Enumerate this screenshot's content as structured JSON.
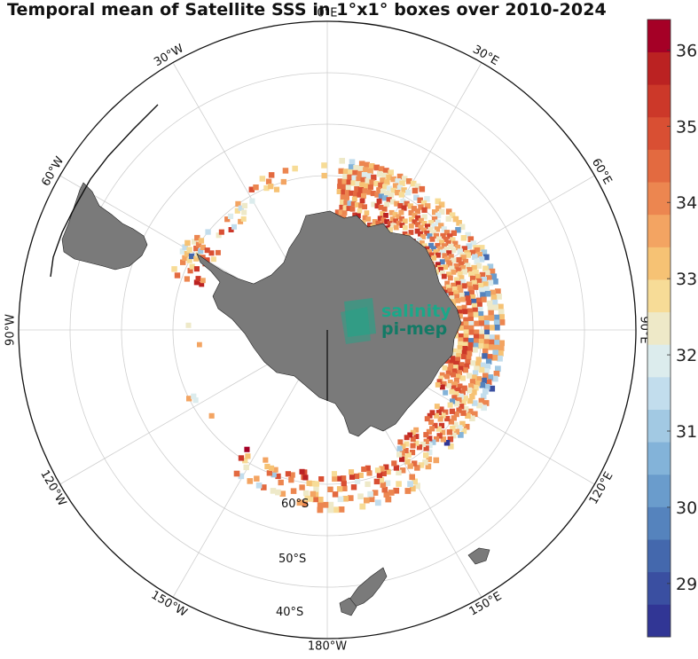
{
  "title": "Temporal mean of Satellite SSS in 1°x1° boxes over 2010-2024",
  "logo": {
    "line1": "salinity",
    "line2": "pi-mep",
    "color": "#1aa889"
  },
  "longitude_labels": [
    {
      "text": "0°E",
      "lon": 0
    },
    {
      "text": "30°E",
      "lon": 30
    },
    {
      "text": "60°E",
      "lon": 60
    },
    {
      "text": "90°E",
      "lon": 90
    },
    {
      "text": "120°E",
      "lon": 120
    },
    {
      "text": "150°E",
      "lon": 150
    },
    {
      "text": "180°W",
      "lon": 180
    },
    {
      "text": "150°W",
      "lon": -150
    },
    {
      "text": "120°W",
      "lon": -120
    },
    {
      "text": "90°W",
      "lon": -90
    },
    {
      "text": "60°W",
      "lon": -60
    },
    {
      "text": "30°W",
      "lon": -30
    }
  ],
  "latitude_labels": [
    "60°S",
    "50°S",
    "40°S"
  ],
  "colorbar": {
    "min": 28.3,
    "max": 36.4,
    "ticks": [
      "29",
      "30",
      "31",
      "32",
      "33",
      "34",
      "35",
      "36"
    ],
    "tick_values": [
      29,
      30,
      31,
      32,
      33,
      34,
      35,
      36
    ],
    "colors": [
      "#313695",
      "#3a4fa1",
      "#4468ad",
      "#5583bd",
      "#6a9ccc",
      "#83b3d9",
      "#a2c9e3",
      "#c2dded",
      "#dceced",
      "#eee9c8",
      "#f7dc97",
      "#f6c274",
      "#f3a462",
      "#ec8650",
      "#e36a40",
      "#d94f33",
      "#cc3829",
      "#bb2222",
      "#a50026"
    ]
  },
  "land_color": "#7a7a7a"
}
